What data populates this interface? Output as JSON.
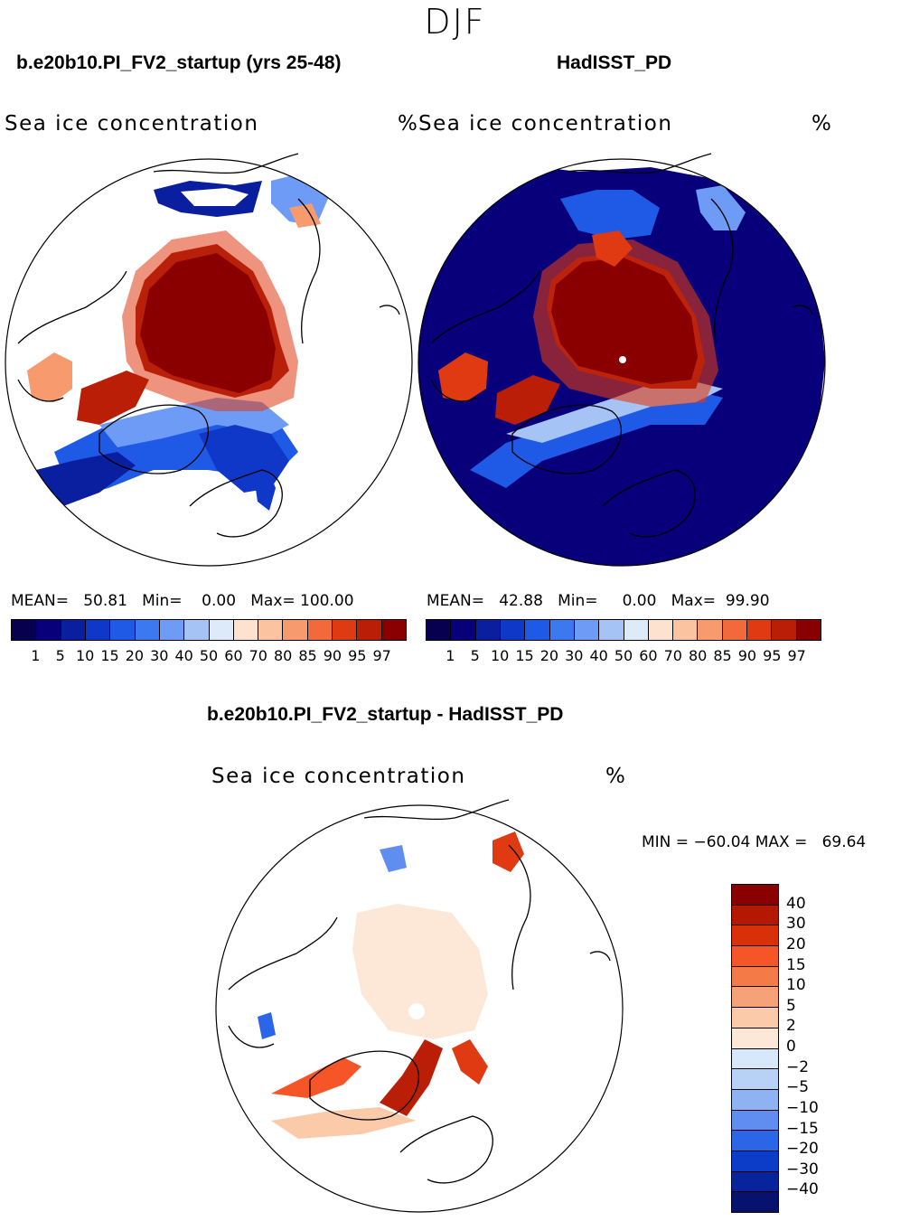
{
  "figure": {
    "season": "DJF",
    "left_panel": {
      "title": "b.e20b10.PI_FV2_startup (yrs 25-48)",
      "variable": "Sea ice concentration",
      "unit": "%",
      "stats": {
        "mean_label": "MEAN=",
        "mean": "50.81",
        "min_label": "Min=",
        "min": "0.00",
        "max_label": "Max=",
        "max": "100.00"
      }
    },
    "right_panel": {
      "title": "HadISST_PD",
      "variable": "Sea ice concentration",
      "unit": "%",
      "stats": {
        "mean_label": "MEAN=",
        "mean": "42.88",
        "min_label": "Min=",
        "min": "0.00",
        "max_label": "Max=",
        "max": "99.90"
      }
    },
    "diff_panel": {
      "title": "b.e20b10.PI_FV2_startup - HadISST_PD",
      "variable": "Sea ice concentration",
      "unit": "%",
      "minmax_text": "MIN = −60.04 MAX =   69.64"
    }
  },
  "colorbars": {
    "concentration": {
      "ticks": [
        "1",
        "5",
        "10",
        "15",
        "20",
        "30",
        "40",
        "50",
        "60",
        "70",
        "80",
        "85",
        "90",
        "95",
        "97"
      ],
      "colors": [
        "#08007a",
        "#0a1ea0",
        "#0f37c8",
        "#1e5ae6",
        "#3c78f0",
        "#6e9bf5",
        "#a5c3f5",
        "#dceafa",
        "#fde3cf",
        "#fbc3a0",
        "#f79a6e",
        "#f26a3c",
        "#e03a12",
        "#bb1e06",
        "#8a0000"
      ]
    },
    "difference": {
      "ticks": [
        "40",
        "30",
        "20",
        "15",
        "10",
        "5",
        "2",
        "0",
        "−2",
        "−5",
        "−10",
        "−15",
        "−20",
        "−30",
        "−40"
      ],
      "colors": [
        "#8a0000",
        "#b41800",
        "#d93009",
        "#f55527",
        "#f47a47",
        "#f5a278",
        "#fbcaa8",
        "#fde7d6",
        "#d8e8fb",
        "#b7d1f7",
        "#8fb2f3",
        "#5f8ef0",
        "#2c66e8",
        "#0b3dc8",
        "#07249a",
        "#06126d"
      ]
    }
  }
}
